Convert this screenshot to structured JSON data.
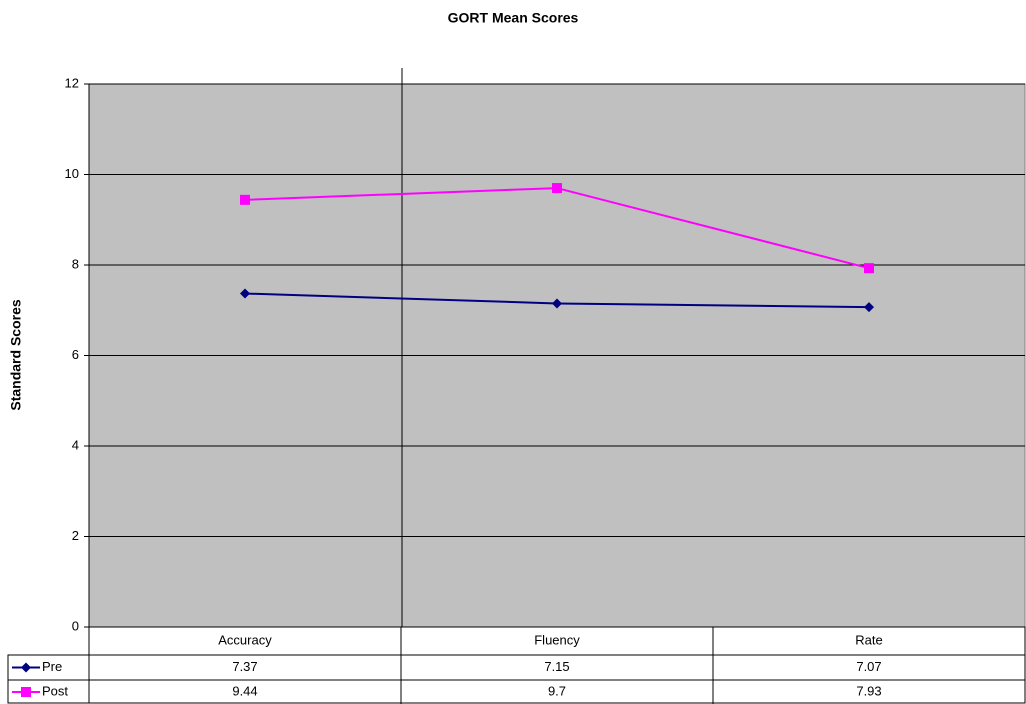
{
  "chart_data": {
    "type": "line",
    "title": "GORT Mean Scores",
    "y_label": "Standard Scores",
    "categories": [
      "Accuracy",
      "Fluency",
      "Rate"
    ],
    "series": [
      {
        "name": "Pre",
        "color": "#000080",
        "marker": "diamond",
        "values": [
          7.37,
          7.15,
          7.07
        ]
      },
      {
        "name": "Post",
        "color": "#ff00ff",
        "marker": "square",
        "values": [
          9.44,
          9.7,
          7.93
        ]
      }
    ],
    "ylim": [
      0,
      12
    ],
    "yticks": [
      0,
      2,
      4,
      6,
      8,
      10,
      12
    ],
    "grid": true,
    "plot_background": "#c0c0c0",
    "data_table": true
  }
}
